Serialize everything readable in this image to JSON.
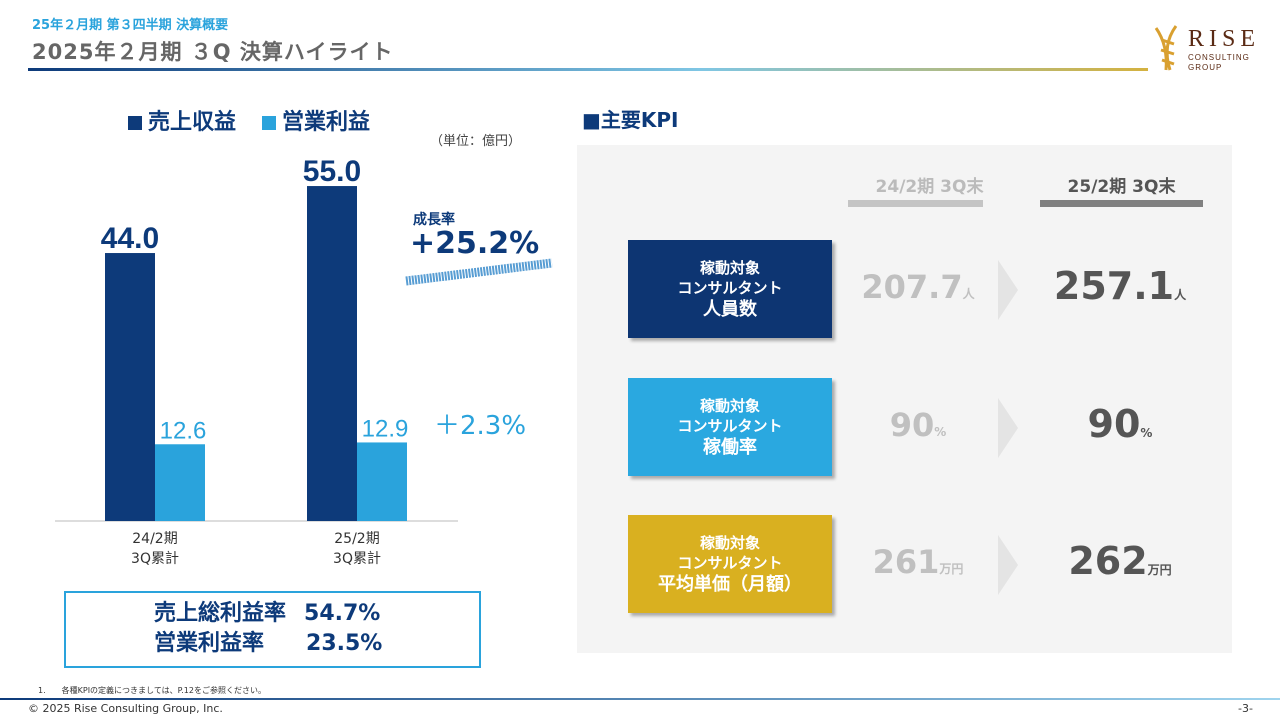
{
  "header": {
    "subtitle": "25年２月期 第３四半期 決算概要",
    "title": "2025年２月期 ３Q 決算ハイライト",
    "logo_text": "RISE CONSULTING GROUP"
  },
  "chart_data": {
    "type": "bar",
    "categories": [
      "24/2期\n3Q累計",
      "25/2期\n3Q累計"
    ],
    "category_lines": [
      [
        "24/2期",
        "3Q累計"
      ],
      [
        "25/2期",
        "3Q累計"
      ]
    ],
    "series": [
      {
        "name": "売上収益",
        "values": [
          44.0,
          55.0
        ],
        "labels": [
          "44.0",
          "55.0"
        ],
        "color": "#0d3a7a"
      },
      {
        "name": "営業利益",
        "values": [
          12.6,
          12.9
        ],
        "labels": [
          "12.6",
          "12.9"
        ],
        "color": "#2aa3dc"
      }
    ],
    "unit": "（単位：億円）",
    "ylim": [
      0,
      60
    ],
    "legend": "top",
    "grid": false
  },
  "growth": {
    "label": "成長率",
    "revenue": "+25.2%",
    "op": "＋2.3%"
  },
  "ratios": [
    {
      "label": "売上総利益率",
      "value": "54.7%"
    },
    {
      "label": "営業利益率",
      "value": "23.5%"
    }
  ],
  "kpi": {
    "heading": "■主要KPI",
    "col_prev": "24/2期 3Q末",
    "col_cur": "25/2期 3Q末",
    "rows": [
      {
        "l1": "稼動対象",
        "l2": "コンサルタント",
        "l3": "人員数",
        "prev": "207.7",
        "cur": "257.1",
        "unit": "人",
        "color": "#0d3572"
      },
      {
        "l1": "稼動対象",
        "l2": "コンサルタント",
        "l3": "稼働率",
        "prev": "90",
        "cur": "90",
        "unit": "%",
        "color": "#2aa8e0"
      },
      {
        "l1": "稼動対象",
        "l2": "コンサルタント",
        "l3": "平均単価（月額）",
        "prev": "261",
        "cur": "262",
        "unit": "万円",
        "color": "#d9b020"
      }
    ]
  },
  "footer": {
    "note": "1.　　各種KPIの定義につきましては、P.12をご参照ください。",
    "copyright": "© 2025 Rise Consulting Group, Inc.",
    "page": "-3-"
  }
}
